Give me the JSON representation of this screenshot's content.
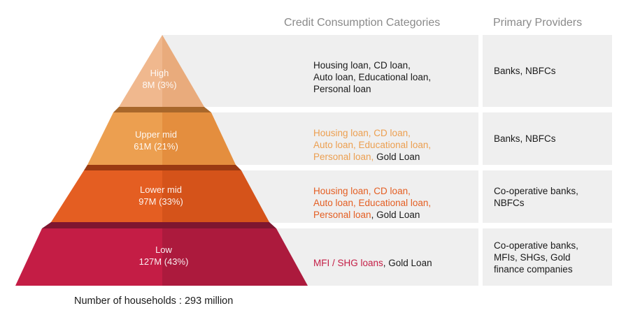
{
  "headers": {
    "categories": "Credit Consumption Categories",
    "providers": "Primary Providers"
  },
  "tiers": [
    {
      "name": "High",
      "value": "8M (3%)",
      "color": "#f0b88e",
      "categories": [
        {
          "text": "Housing loan, CD loan,\nAuto loan, Educational loan,\nPersonal loan",
          "color": "#1a1a1a"
        }
      ],
      "providers": "Banks, NBFCs"
    },
    {
      "name": "Upper mid",
      "value": "61M (21%)",
      "color": "#ec9f50",
      "categories": [
        {
          "text": "Housing loan, CD loan,\nAuto loan, Educational loan,\nPersonal loan, ",
          "color": "#ec9f50"
        },
        {
          "text": "Gold Loan",
          "color": "#1a1a1a"
        }
      ],
      "providers": "Banks, NBFCs"
    },
    {
      "name": "Lower mid",
      "value": "97M (33%)",
      "color": "#e45e22",
      "categories": [
        {
          "text": "Housing loan, CD loan,\nAuto loan, Educational loan,\nPersonal loan",
          "color": "#e45e22"
        },
        {
          "text": ", Gold Loan",
          "color": "#1a1a1a"
        }
      ],
      "providers": "Co-operative banks,\nNBFCs"
    },
    {
      "name": "Low",
      "value": "127M (43%)",
      "color": "#c41d45",
      "categories": [
        {
          "text": "MFI / SHG loans",
          "color": "#c41d45"
        },
        {
          "text": ", Gold Loan",
          "color": "#1a1a1a"
        }
      ],
      "providers": "Co-operative banks,\nMFIs, SHGs, Gold\nfinance companies"
    }
  ],
  "footer": "Number of households : 293 million"
}
